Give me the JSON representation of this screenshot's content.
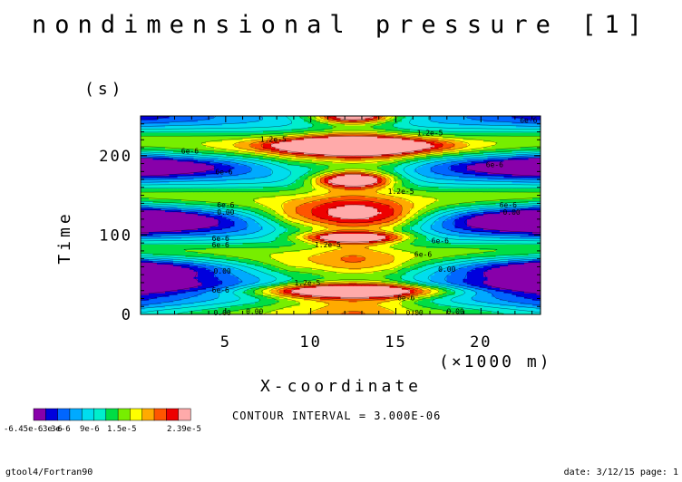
{
  "title": "nondimensional pressure [1]",
  "footer": {
    "left": "gtool4/Fortran90",
    "right": "date: 3/12/15 page: 1"
  },
  "contour_interval_text": "CONTOUR INTERVAL = 3.000E-06",
  "chart_data": {
    "type": "heatmap",
    "title": "nondimensional pressure [1]",
    "xlabel": "X-coordinate",
    "x_unit": "(×1000 m)",
    "ylabel": "Time",
    "y_unit": "(s)",
    "xlim": [
      0,
      23.5
    ],
    "ylim": [
      0,
      250
    ],
    "x_ticks": [
      5,
      10,
      15,
      20
    ],
    "x_tick_labels": [
      "5",
      "10",
      "15",
      "20"
    ],
    "y_ticks": [
      0,
      100,
      200
    ],
    "y_tick_labels": [
      "0",
      "100",
      "200"
    ],
    "value_range": [
      -6.45e-06,
      2.39e-05
    ],
    "contour_interval": 3e-06,
    "colorbar": {
      "colors": [
        "#8800aa",
        "#0000dd",
        "#0066ff",
        "#00aaff",
        "#00ddee",
        "#00eecc",
        "#00dd44",
        "#77ee00",
        "#ffff00",
        "#ffaa00",
        "#ff5500",
        "#ee0000",
        "#ffaaaa"
      ],
      "labels": [
        "-6.45e-6",
        "3e-6",
        "3e-6",
        "9e-6",
        "1.5e-5",
        "2.39e-5"
      ]
    },
    "contour_labels": [
      {
        "text": "1.2e-5",
        "x": 7.8,
        "y": 221
      },
      {
        "text": "1.2e-5",
        "x": 17.0,
        "y": 229
      },
      {
        "text": "6e-6",
        "x": 2.9,
        "y": 206
      },
      {
        "text": "6e-6",
        "x": 22.8,
        "y": 245
      },
      {
        "text": "6e-6",
        "x": 20.8,
        "y": 189
      },
      {
        "text": "6e-6",
        "x": 4.9,
        "y": 180
      },
      {
        "text": "1.2e-5",
        "x": 15.3,
        "y": 155
      },
      {
        "text": "6e-6",
        "x": 5.0,
        "y": 138
      },
      {
        "text": "0.00",
        "x": 5.0,
        "y": 129
      },
      {
        "text": "6e-6",
        "x": 21.6,
        "y": 138
      },
      {
        "text": "0.00",
        "x": 21.8,
        "y": 129
      },
      {
        "text": "6e-6",
        "x": 4.7,
        "y": 96
      },
      {
        "text": "6e-6",
        "x": 4.7,
        "y": 88
      },
      {
        "text": "1.2e-5",
        "x": 11.0,
        "y": 88
      },
      {
        "text": "6e-6",
        "x": 17.6,
        "y": 93
      },
      {
        "text": "6e-6",
        "x": 16.6,
        "y": 76
      },
      {
        "text": "0.00",
        "x": 4.8,
        "y": 55
      },
      {
        "text": "0.00",
        "x": 18.0,
        "y": 57
      },
      {
        "text": "1.2e-5",
        "x": 9.8,
        "y": 40
      },
      {
        "text": "6e-6",
        "x": 4.7,
        "y": 31
      },
      {
        "text": "6e-6",
        "x": 15.6,
        "y": 21
      },
      {
        "text": "0.00",
        "x": 4.8,
        "y": 2
      },
      {
        "text": "0.00",
        "x": 6.7,
        "y": 4
      },
      {
        "text": "0.00",
        "x": 16.1,
        "y": 2
      },
      {
        "text": "0.00",
        "x": 18.5,
        "y": 4
      }
    ]
  }
}
